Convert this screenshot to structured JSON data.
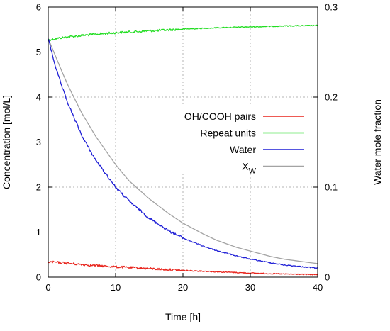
{
  "chart_data": {
    "type": "line",
    "title": "",
    "xlabel": "Time [h]",
    "ylabel_left": "Concentration [mol/L]",
    "ylabel_right": "Water mole fraction",
    "xlim": [
      0,
      40
    ],
    "ylim_left": [
      0,
      6
    ],
    "ylim_right": [
      0,
      0.3
    ],
    "xticks": [
      "0",
      "10",
      "20",
      "30",
      "40"
    ],
    "yticks_left": [
      "0",
      "1",
      "2",
      "3",
      "4",
      "5",
      "6"
    ],
    "yticks_right": [
      "0",
      "0.1",
      "0.2",
      "0.3"
    ],
    "grid": true,
    "legend_position": "right-middle",
    "series": [
      {
        "name": "OH/COOH pairs",
        "axis": "left",
        "color": "#e8231b",
        "noisy": true,
        "x": [
          0,
          2,
          5,
          8,
          10,
          15,
          20,
          25,
          30,
          35,
          40
        ],
        "y": [
          0.34,
          0.32,
          0.28,
          0.25,
          0.23,
          0.19,
          0.15,
          0.12,
          0.09,
          0.07,
          0.055
        ]
      },
      {
        "name": "Repeat units",
        "axis": "left",
        "color": "#21dd21",
        "noisy": true,
        "x": [
          0,
          2,
          5,
          10,
          15,
          20,
          25,
          30,
          35,
          40
        ],
        "y": [
          5.27,
          5.32,
          5.37,
          5.43,
          5.47,
          5.51,
          5.54,
          5.56,
          5.58,
          5.59
        ]
      },
      {
        "name": "Water",
        "axis": "left",
        "color": "#1f1fd6",
        "noisy": true,
        "x": [
          0,
          1,
          2,
          3,
          5,
          7,
          10,
          12,
          15,
          18,
          20,
          23,
          25,
          28,
          30,
          33,
          35,
          38,
          40
        ],
        "y": [
          5.3,
          4.72,
          4.24,
          3.83,
          3.14,
          2.61,
          2.0,
          1.69,
          1.31,
          1.02,
          0.87,
          0.69,
          0.59,
          0.47,
          0.4,
          0.32,
          0.27,
          0.23,
          0.2
        ]
      },
      {
        "name": "XW",
        "axis": "right",
        "color": "#a3a3a3",
        "noisy": false,
        "x": [
          0,
          1,
          2,
          3,
          5,
          7,
          10,
          12,
          15,
          18,
          20,
          23,
          25,
          28,
          30,
          33,
          35,
          38,
          40
        ],
        "y": [
          0.265,
          0.247,
          0.229,
          0.212,
          0.182,
          0.157,
          0.125,
          0.107,
          0.087,
          0.07,
          0.06,
          0.048,
          0.041,
          0.033,
          0.029,
          0.023,
          0.02,
          0.017,
          0.015
        ]
      }
    ],
    "legend": [
      {
        "main": "OH/COOH pairs",
        "sub": "",
        "color": "#e8231b"
      },
      {
        "main": "Repeat units",
        "sub": "",
        "color": "#21dd21"
      },
      {
        "main": "Water",
        "sub": "",
        "color": "#1f1fd6"
      },
      {
        "main": "X",
        "sub": "W",
        "color": "#a3a3a3"
      }
    ]
  }
}
